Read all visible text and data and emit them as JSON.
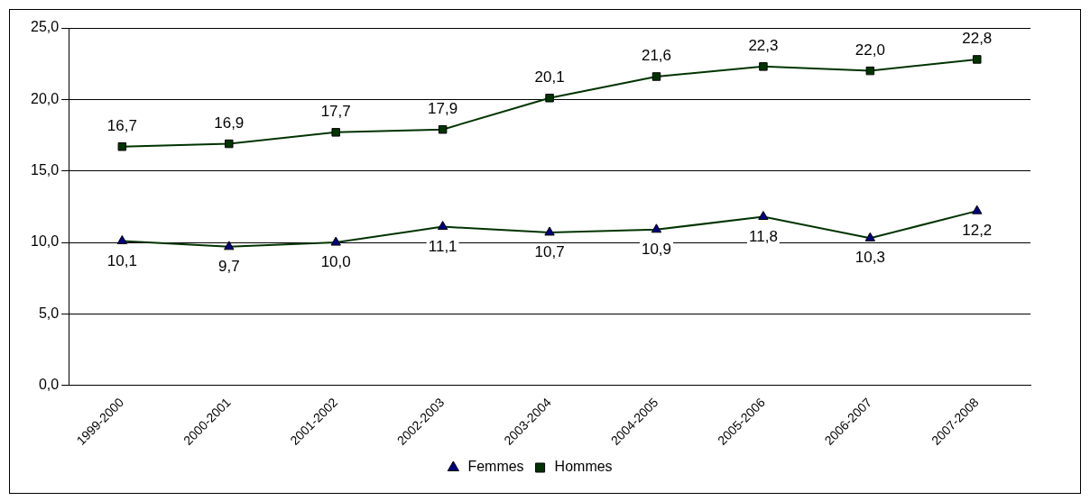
{
  "chart_data": {
    "type": "line",
    "categories": [
      "1999-2000",
      "2000-2001",
      "2001-2002",
      "2002-2003",
      "2003-2004",
      "2004-2005",
      "2005-2006",
      "2006-2007",
      "2007-2008"
    ],
    "series": [
      {
        "name": "Femmes",
        "color": "#000080",
        "marker": "triangle",
        "values": [
          10.1,
          9.7,
          10.0,
          11.1,
          10.7,
          10.9,
          11.8,
          10.3,
          12.2
        ],
        "value_labels": [
          "10,1",
          "9,7",
          "10,0",
          "11,1",
          "10,7",
          "10,9",
          "11,8",
          "10,3",
          "12,2"
        ]
      },
      {
        "name": "Hommes",
        "color": "#003300",
        "marker": "square",
        "values": [
          16.7,
          16.9,
          17.7,
          17.9,
          20.1,
          21.6,
          22.3,
          22.0,
          22.8
        ],
        "value_labels": [
          "16,7",
          "16,9",
          "17,7",
          "17,9",
          "20,1",
          "21,6",
          "22,3",
          "22,0",
          "22,8"
        ]
      }
    ],
    "ylim": [
      0,
      25
    ],
    "yticks": [
      {
        "value": 0,
        "label": "0,0"
      },
      {
        "value": 5,
        "label": "5,0"
      },
      {
        "value": 10,
        "label": "10,0"
      },
      {
        "value": 15,
        "label": "15,0"
      },
      {
        "value": 20,
        "label": "20,0"
      },
      {
        "value": 25,
        "label": "25,0"
      }
    ],
    "grid": "y",
    "legend": "bottom",
    "line_style": "solid"
  }
}
